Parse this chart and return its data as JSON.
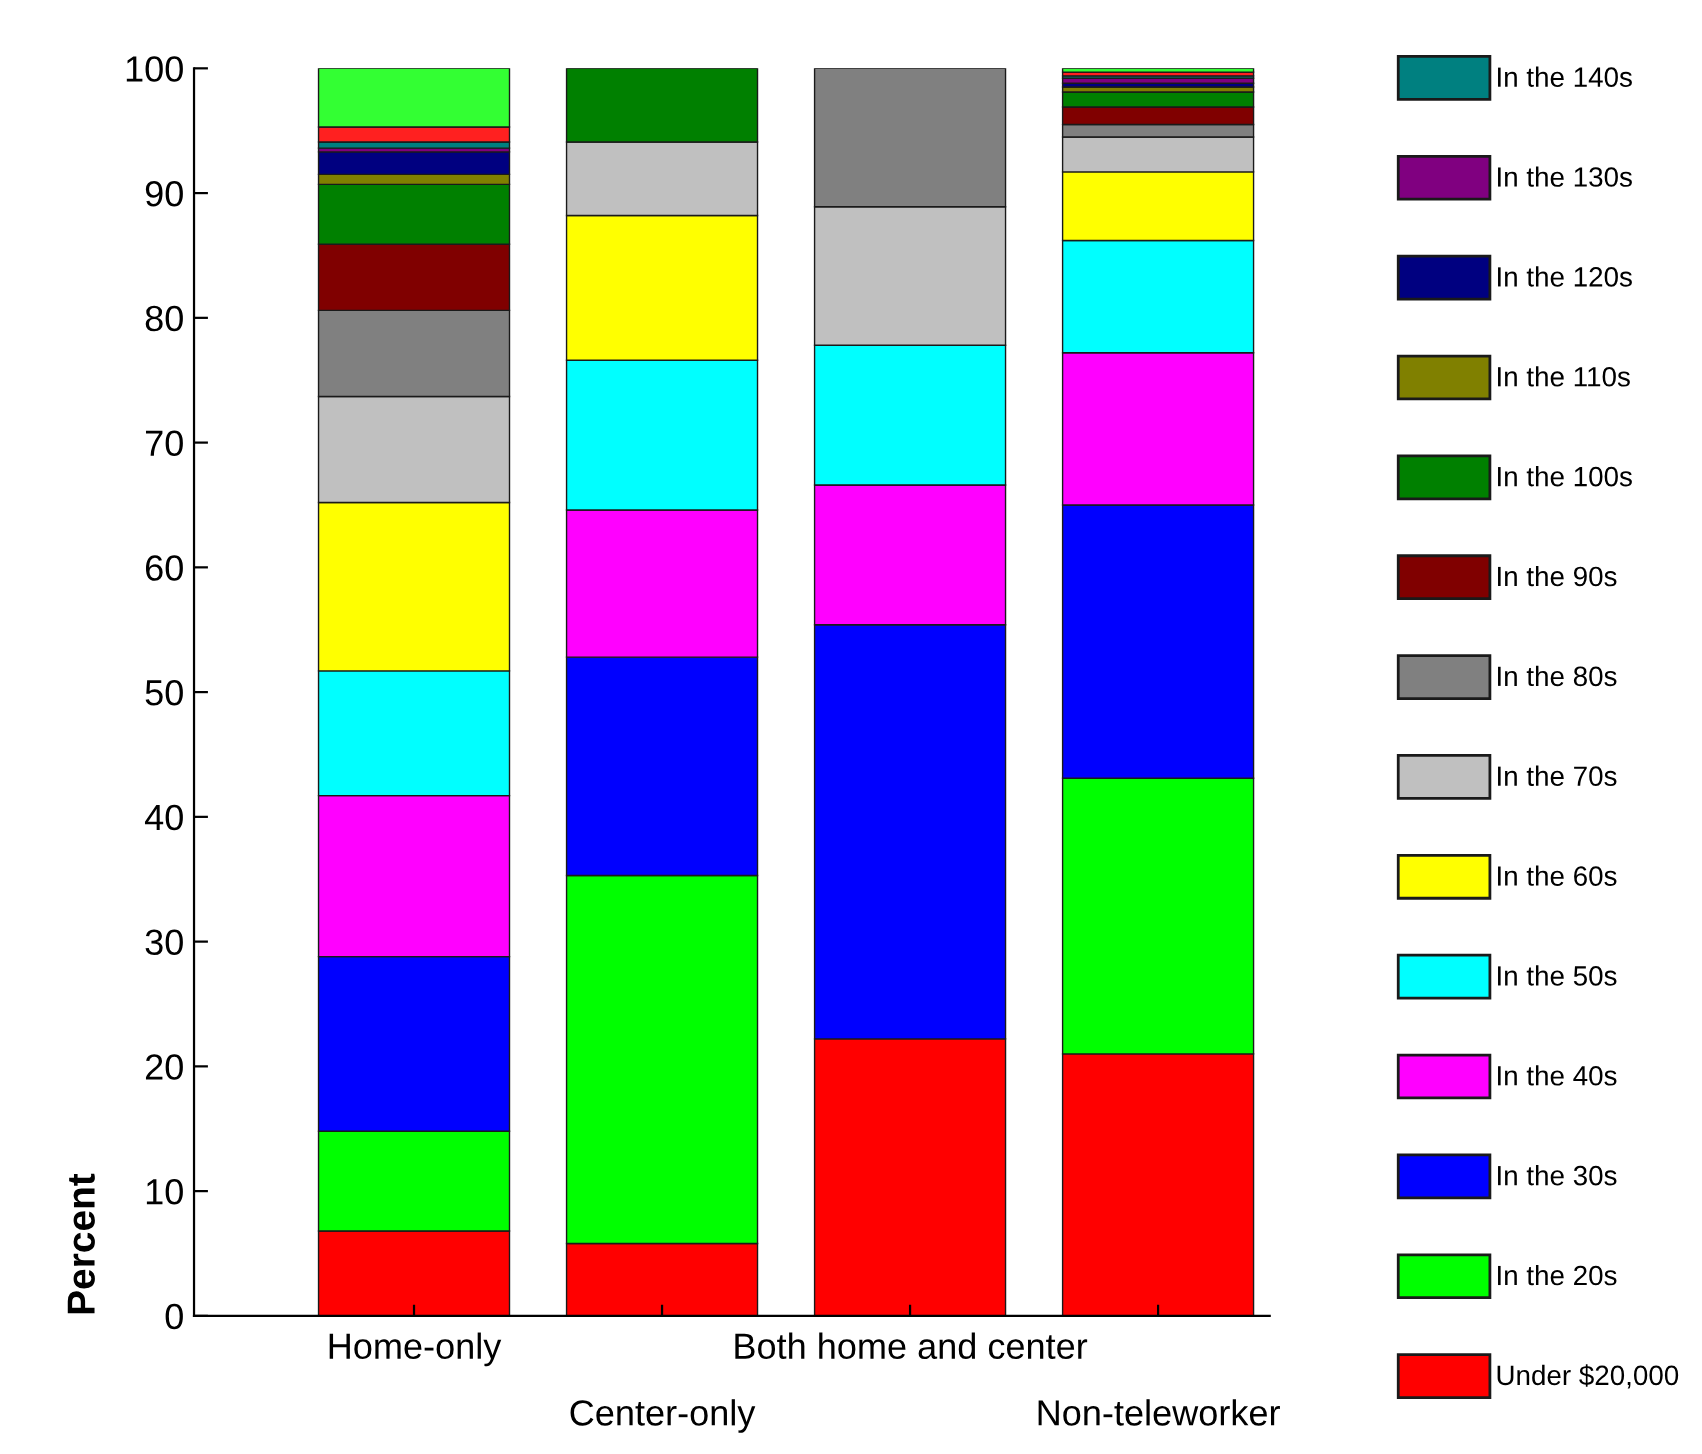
{
  "chart_data": {
    "type": "bar",
    "stacked": true,
    "ylabel": "Percent",
    "categories": [
      "Home-only",
      "Center-only",
      "Both home and center",
      "Non-teleworker"
    ],
    "ylim": [
      0,
      100
    ],
    "yticks": [
      0,
      10,
      20,
      30,
      40,
      50,
      60,
      70,
      80,
      90,
      100
    ],
    "legend": "right",
    "grid": false,
    "series": [
      {
        "name": "Under $20,000",
        "color": "#ff0000",
        "values": [
          6.8,
          5.8,
          22.2,
          21.0
        ]
      },
      {
        "name": "In the 20s",
        "color": "#00ff00",
        "values": [
          8.0,
          29.5,
          null,
          22.1
        ]
      },
      {
        "name": "In the 30s",
        "color": "#0000ff",
        "values": [
          14.0,
          17.5,
          33.2,
          21.9
        ]
      },
      {
        "name": "In the 40s",
        "color": "#ff00ff",
        "values": [
          12.9,
          11.8,
          11.2,
          12.2
        ]
      },
      {
        "name": "In the 50s",
        "color": "#00ffff",
        "values": [
          10.0,
          12.0,
          11.2,
          9.0
        ]
      },
      {
        "name": "In the 60s",
        "color": "#ffff00",
        "values": [
          13.5,
          11.6,
          null,
          5.5
        ]
      },
      {
        "name": "In the 70s",
        "color": "#c0c0c0",
        "values": [
          8.5,
          5.9,
          11.1,
          2.8
        ]
      },
      {
        "name": "In the 80s",
        "color": "#808080",
        "values": [
          6.9,
          null,
          11.1,
          1.0
        ]
      },
      {
        "name": "In the 90s",
        "color": "#800000",
        "values": [
          5.3,
          null,
          null,
          1.4
        ]
      },
      {
        "name": "In the 100s",
        "color": "#008000",
        "values": [
          4.8,
          5.9,
          null,
          1.2
        ]
      },
      {
        "name": "In the 110s",
        "color": "#808000",
        "values": [
          0.8,
          null,
          null,
          0.4
        ]
      },
      {
        "name": "In the 120s",
        "color": "#000080",
        "values": [
          1.8,
          null,
          null,
          0.3
        ]
      },
      {
        "name": "In the 130s",
        "color": "#800080",
        "values": [
          0.3,
          null,
          null,
          0.4
        ]
      },
      {
        "name": "In the 140s",
        "color": "#008080",
        "values": [
          0.5,
          null,
          null,
          0.2
        ]
      },
      {
        "color": "#ff2020",
        "values": [
          1.2,
          null,
          null,
          0.3
        ]
      },
      {
        "color": "#33ff33",
        "values": [
          4.7,
          null,
          null,
          0.3
        ]
      }
    ]
  }
}
